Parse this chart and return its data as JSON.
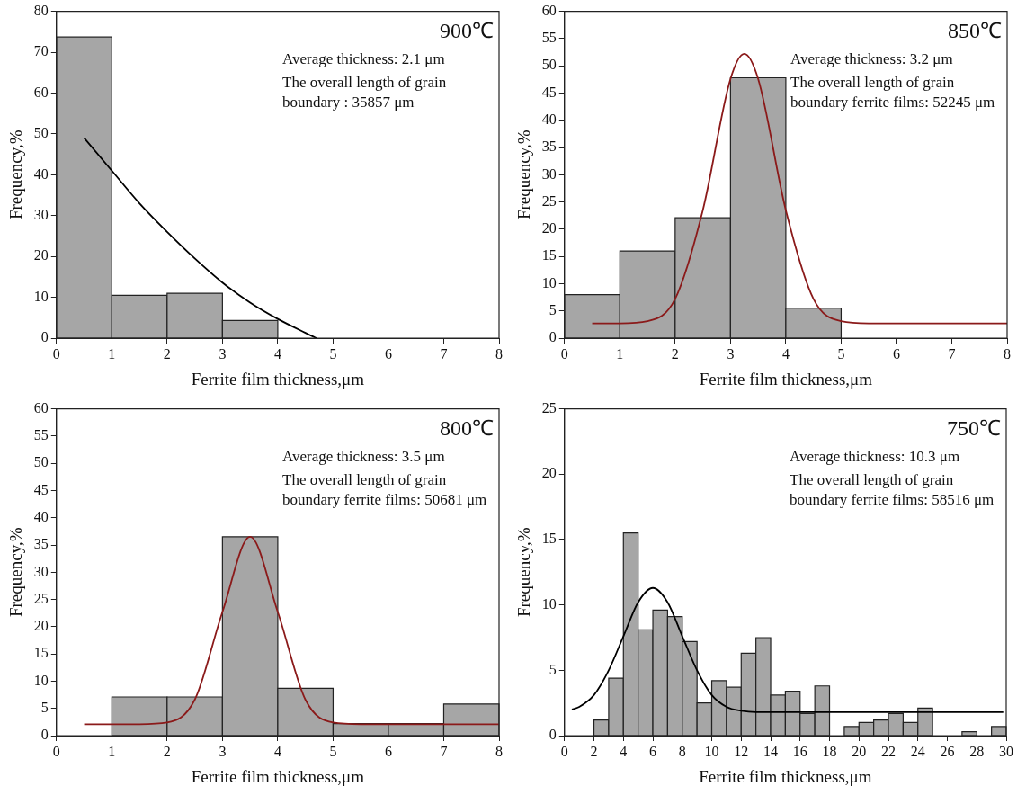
{
  "chart_data": [
    {
      "type": "histogram",
      "xlabel": "Ferrite film thickness,μm",
      "ylabel": "Frequency,%",
      "xlim": [
        0,
        8
      ],
      "xticks": [
        0,
        1,
        2,
        3,
        4,
        5,
        6,
        7,
        8
      ],
      "ylim": [
        0,
        80
      ],
      "yticks": [
        0,
        10,
        20,
        30,
        40,
        50,
        60,
        70,
        80
      ],
      "grid": false,
      "legend": false,
      "marker": "none",
      "annotations": [
        "900℃",
        "Average thickness: 2.1 μm",
        "The overall length of grain boundary : 35857 μm"
      ],
      "series": [
        {
          "type": "histogram",
          "bins": [
            0,
            1,
            2,
            3,
            4
          ],
          "values": [
            73.7,
            10.5,
            11,
            4.3
          ],
          "color": "#a6a6a6"
        },
        {
          "type": "line",
          "x": [
            0.5,
            1,
            1.5,
            2,
            2.5,
            3,
            3.5,
            4,
            4.5,
            4.7
          ],
          "values": [
            49,
            41,
            33,
            26,
            19.5,
            13.6,
            8.7,
            4.7,
            1.3,
            0
          ],
          "color": "#000000"
        }
      ]
    },
    {
      "type": "histogram",
      "xlabel": "Ferrite film thickness,μm",
      "ylabel": "Frequency,%",
      "xlim": [
        0,
        8
      ],
      "xticks": [
        0,
        1,
        2,
        3,
        4,
        5,
        6,
        7,
        8
      ],
      "ylim": [
        0,
        60
      ],
      "yticks": [
        0,
        5,
        10,
        15,
        20,
        25,
        30,
        35,
        40,
        45,
        50,
        55,
        60
      ],
      "grid": false,
      "legend": false,
      "marker": "none",
      "annotations": [
        "850℃",
        "Average thickness: 3.2 μm",
        "The overall length of grain boundary ferrite films: 52245 μm"
      ],
      "series": [
        {
          "type": "histogram",
          "bins": [
            0,
            1,
            2,
            3,
            4,
            5
          ],
          "values": [
            8,
            16,
            22.1,
            47.8,
            5.5
          ],
          "color": "#a6a6a6"
        },
        {
          "type": "line",
          "x": [
            0.5,
            1,
            1.5,
            2,
            2.5,
            3,
            3.25,
            3.5,
            4,
            4.5,
            5,
            5.5,
            6,
            8
          ],
          "values": [
            2.7,
            2.7,
            3.1,
            7.2,
            23.5,
            47.6,
            52.2,
            47.6,
            23.5,
            7.2,
            3.1,
            2.7,
            2.7,
            2.7
          ],
          "color": "#8b1a1a"
        }
      ]
    },
    {
      "type": "histogram",
      "xlabel": "Ferrite film thickness,μm",
      "ylabel": "Frequency,%",
      "xlim": [
        0,
        8
      ],
      "xticks": [
        0,
        1,
        2,
        3,
        4,
        5,
        6,
        7,
        8
      ],
      "ylim": [
        0,
        60
      ],
      "yticks": [
        0,
        5,
        10,
        15,
        20,
        25,
        30,
        35,
        40,
        45,
        50,
        55,
        60
      ],
      "grid": false,
      "legend": false,
      "marker": "none",
      "annotations": [
        "800℃",
        "Average thickness: 3.5 μm",
        "The overall length of grain boundary ferrite films: 50681 μm"
      ],
      "series": [
        {
          "type": "histogram",
          "bins": [
            1,
            2,
            3,
            4,
            5,
            6,
            7,
            8
          ],
          "values": [
            7.1,
            7.1,
            36.5,
            8.7,
            2.2,
            2.2,
            5.8
          ],
          "color": "#a6a6a6"
        },
        {
          "type": "line",
          "x": [
            0.5,
            1,
            1.5,
            2,
            2.5,
            3,
            3.5,
            4,
            4.5,
            5,
            5.5,
            6,
            8
          ],
          "values": [
            2.1,
            2.1,
            2.1,
            2.4,
            6.6,
            22.7,
            36.5,
            22.7,
            6.6,
            2.4,
            2.1,
            2.1,
            2.1
          ],
          "color": "#8b1a1a"
        }
      ]
    },
    {
      "type": "histogram",
      "xlabel": "Ferrite film thickness,μm",
      "ylabel": "Frequency,%",
      "xlim": [
        0,
        30
      ],
      "xticks": [
        0,
        2,
        4,
        6,
        8,
        10,
        12,
        14,
        16,
        18,
        20,
        22,
        24,
        26,
        28,
        30
      ],
      "ylim": [
        0,
        25
      ],
      "yticks": [
        0,
        5,
        10,
        15,
        20,
        25
      ],
      "grid": false,
      "legend": false,
      "marker": "none",
      "annotations": [
        "750℃",
        "Average thickness: 10.3 μm",
        "The overall length of grain boundary ferrite films: 58516 μm"
      ],
      "series": [
        {
          "type": "histogram",
          "bins": [
            2,
            3,
            4,
            5,
            6,
            7,
            8,
            9,
            10,
            11,
            12,
            13,
            14,
            15,
            16,
            17,
            18,
            19,
            20,
            21,
            22,
            23,
            24,
            25
          ],
          "values": [
            1.2,
            4.4,
            15.5,
            8.1,
            9.6,
            9.1,
            7.2,
            2.5,
            4.2,
            3.7,
            6.3,
            7.5,
            3.1,
            3.4,
            1.7,
            3.8,
            0,
            0.7,
            1,
            1.2,
            1.7,
            1,
            2.1
          ],
          "color": "#a6a6a6"
        },
        {
          "type": "histogram",
          "bins": [
            27,
            28,
            29,
            30
          ],
          "values": [
            0.3,
            0,
            0.7
          ],
          "color": "#a6a6a6"
        },
        {
          "type": "line",
          "x": [
            0.5,
            1,
            2,
            3,
            4,
            5,
            6,
            7,
            8,
            9,
            10,
            11,
            12,
            13,
            29.8
          ],
          "values": [
            2,
            2.2,
            3.1,
            5,
            7.6,
            10.2,
            11.3,
            10.2,
            7.6,
            5,
            3.1,
            2.2,
            1.9,
            1.8,
            1.8
          ],
          "color": "#000000"
        }
      ]
    }
  ]
}
